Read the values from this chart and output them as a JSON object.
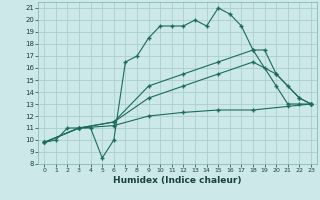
{
  "bg_color": "#cce8e8",
  "grid_color": "#aacfcf",
  "line_color": "#1a6b5a",
  "xlabel": "Humidex (Indice chaleur)",
  "xlim": [
    -0.5,
    23.5
  ],
  "ylim": [
    8,
    21.5
  ],
  "xticks": [
    0,
    1,
    2,
    3,
    4,
    5,
    6,
    7,
    8,
    9,
    10,
    11,
    12,
    13,
    14,
    15,
    16,
    17,
    18,
    19,
    20,
    21,
    22,
    23
  ],
  "yticks": [
    8,
    9,
    10,
    11,
    12,
    13,
    14,
    15,
    16,
    17,
    18,
    19,
    20,
    21
  ],
  "line1_x": [
    0,
    1,
    2,
    3,
    4,
    5,
    6,
    7,
    8,
    9,
    10,
    11,
    12,
    13,
    14,
    15,
    16,
    17,
    18,
    19,
    20,
    21,
    22,
    23
  ],
  "line1_y": [
    9.8,
    10.0,
    11.0,
    11.0,
    11.0,
    8.5,
    10.0,
    16.5,
    17.0,
    18.5,
    19.5,
    19.5,
    19.5,
    20.0,
    19.5,
    21.0,
    20.5,
    19.5,
    17.5,
    16.0,
    14.5,
    13.0,
    13.0,
    13.0
  ],
  "line2_x": [
    0,
    3,
    6,
    9,
    12,
    15,
    18,
    19,
    20,
    21,
    22,
    23
  ],
  "line2_y": [
    9.8,
    11.0,
    11.5,
    14.5,
    15.5,
    16.5,
    17.5,
    17.5,
    15.5,
    14.5,
    13.5,
    13.0
  ],
  "line3_x": [
    0,
    3,
    6,
    9,
    12,
    15,
    18,
    20,
    22,
    23
  ],
  "line3_y": [
    9.8,
    11.0,
    11.5,
    13.5,
    14.5,
    15.5,
    16.5,
    15.5,
    13.5,
    13.0
  ],
  "line4_x": [
    0,
    3,
    6,
    9,
    12,
    15,
    18,
    21,
    23
  ],
  "line4_y": [
    9.8,
    11.0,
    11.2,
    12.0,
    12.3,
    12.5,
    12.5,
    12.8,
    13.0
  ]
}
